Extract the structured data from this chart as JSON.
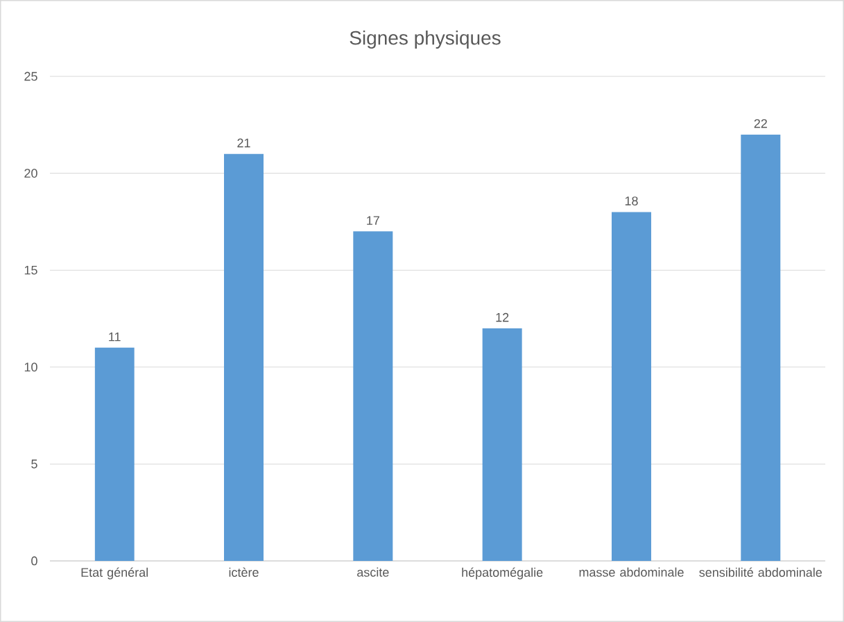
{
  "chart_data": {
    "type": "bar",
    "title": "Signes physiques",
    "categories": [
      "Etat général",
      "ictère",
      "ascite",
      "hépatomégalie",
      "masse abdominale",
      "sensibilité abdominale"
    ],
    "values": [
      11,
      21,
      17,
      12,
      18,
      22
    ],
    "color": "#5b9bd5",
    "ylim": [
      0,
      25
    ],
    "yticks": [
      0,
      5,
      10,
      15,
      20,
      25
    ],
    "grid": "y",
    "data_labels": true
  }
}
